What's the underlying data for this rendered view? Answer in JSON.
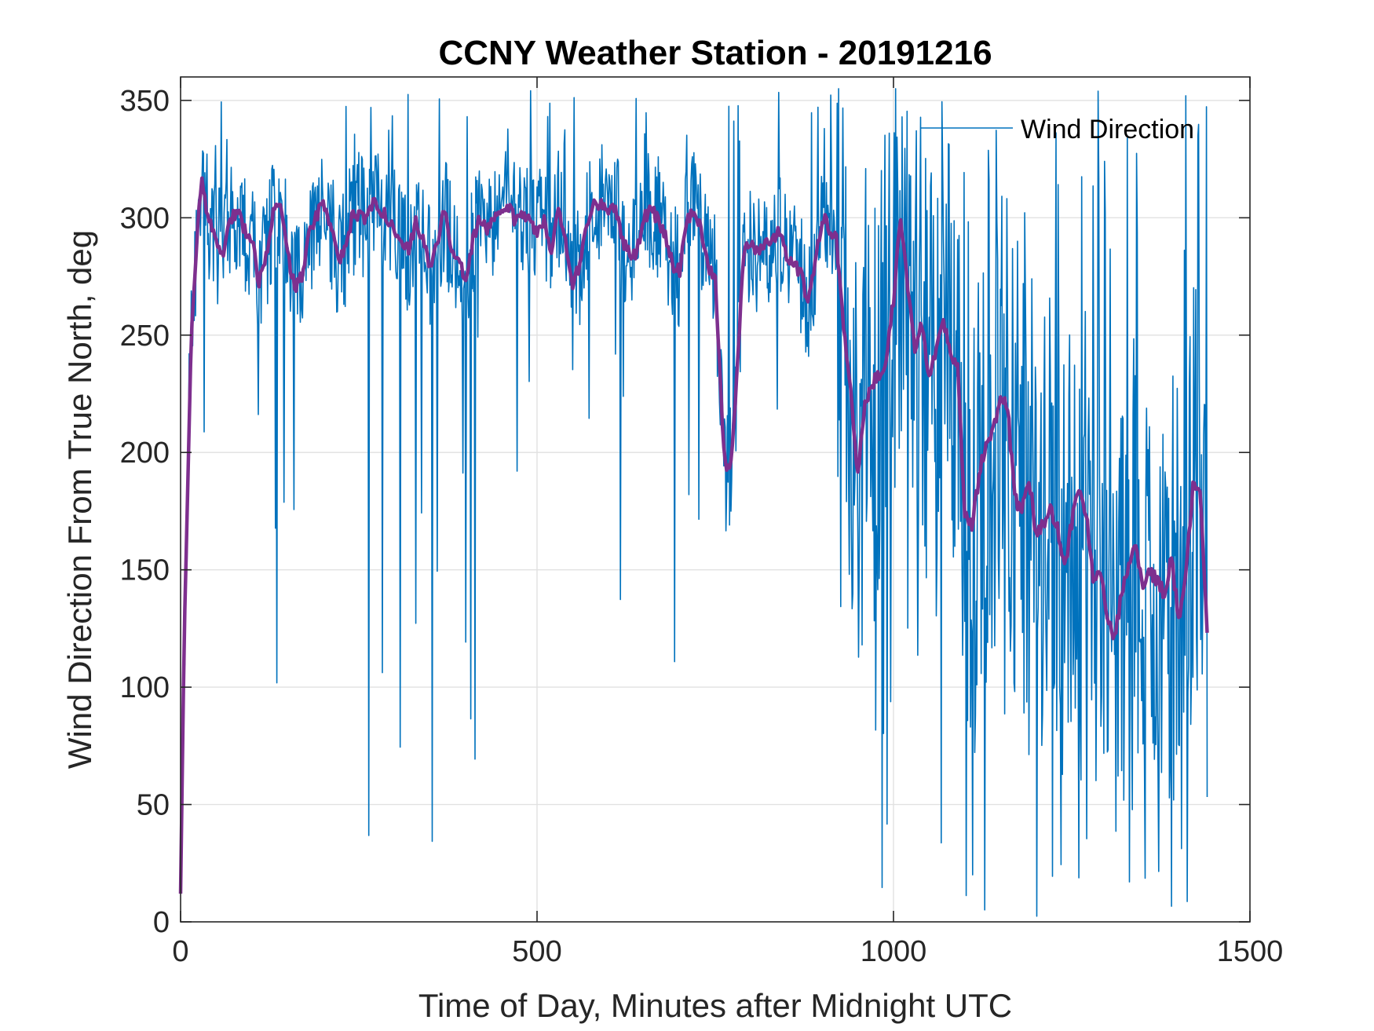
{
  "chart_data": {
    "type": "line",
    "title": "CCNY Weather Station - 20191216",
    "xlabel": "Time of Day, Minutes after Midnight UTC",
    "ylabel": "Wind Direction From True North, deg",
    "xlim": [
      0,
      1500
    ],
    "ylim": [
      0,
      360
    ],
    "xticks": [
      0,
      500,
      1000,
      1500
    ],
    "xtick_labels": [
      "0",
      "500",
      "1000",
      "1500"
    ],
    "yticks": [
      0,
      50,
      100,
      150,
      200,
      250,
      300,
      350
    ],
    "ytick_labels": [
      "0",
      "50",
      "100",
      "150",
      "200",
      "250",
      "300",
      "350"
    ],
    "grid": true,
    "legend": {
      "location": "top-right",
      "entries": [
        "Wind Direction"
      ]
    },
    "colors": {
      "raw": "#0072BD",
      "smoothed": "#7E2F8E"
    },
    "series": [
      {
        "name": "Wind Direction",
        "kind": "raw",
        "note": "1-minute samples, approx. minutes 0-1440; typically ~280-330 deg until ~900 min, highly variable (0-355 deg) afterwards",
        "x_start": 0,
        "x_end": 1440,
        "x_step": 1
      },
      {
        "name": "smoothed",
        "kind": "moving-average",
        "x": [
          0,
          5,
          15,
          25,
          30,
          40,
          50,
          60,
          70,
          80,
          90,
          100,
          110,
          120,
          130,
          140,
          150,
          160,
          170,
          180,
          190,
          200,
          210,
          220,
          230,
          240,
          250,
          260,
          270,
          280,
          290,
          300,
          310,
          320,
          330,
          340,
          350,
          360,
          370,
          380,
          390,
          400,
          410,
          420,
          430,
          440,
          450,
          460,
          470,
          480,
          490,
          500,
          510,
          520,
          530,
          540,
          550,
          560,
          570,
          580,
          590,
          600,
          610,
          620,
          630,
          640,
          650,
          660,
          670,
          680,
          690,
          700,
          710,
          720,
          730,
          740,
          750,
          760,
          765,
          770,
          775,
          780,
          790,
          800,
          810,
          820,
          830,
          840,
          850,
          860,
          870,
          880,
          890,
          900,
          910,
          920,
          930,
          940,
          950,
          960,
          970,
          980,
          990,
          1000,
          1010,
          1020,
          1030,
          1040,
          1050,
          1060,
          1070,
          1080,
          1090,
          1100,
          1110,
          1120,
          1130,
          1140,
          1150,
          1160,
          1170,
          1180,
          1190,
          1200,
          1210,
          1220,
          1230,
          1240,
          1250,
          1260,
          1270,
          1280,
          1290,
          1300,
          1310,
          1320,
          1330,
          1340,
          1350,
          1360,
          1370,
          1380,
          1390,
          1400,
          1410,
          1420,
          1430,
          1440
        ],
        "y": [
          12,
          120,
          250,
          300,
          315,
          298,
          290,
          285,
          300,
          303,
          295,
          292,
          272,
          285,
          302,
          305,
          285,
          270,
          275,
          292,
          300,
          308,
          298,
          282,
          285,
          300,
          302,
          298,
          308,
          303,
          300,
          295,
          292,
          285,
          300,
          290,
          278,
          290,
          302,
          288,
          282,
          275,
          290,
          300,
          295,
          298,
          303,
          305,
          298,
          303,
          298,
          294,
          300,
          285,
          303,
          290,
          272,
          280,
          298,
          306,
          306,
          303,
          305,
          290,
          285,
          285,
          300,
          303,
          300,
          292,
          280,
          278,
          300,
          302,
          296,
          280,
          275,
          210,
          192,
          195,
          205,
          232,
          285,
          290,
          284,
          289,
          290,
          295,
          283,
          282,
          276,
          265,
          280,
          300,
          296,
          290,
          255,
          225,
          190,
          220,
          230,
          232,
          240,
          265,
          300,
          270,
          245,
          255,
          230,
          245,
          255,
          245,
          235,
          175,
          168,
          190,
          205,
          210,
          225,
          220,
          180,
          175,
          190,
          165,
          170,
          175,
          168,
          150,
          170,
          185,
          175,
          145,
          150,
          130,
          120,
          140,
          152,
          160,
          140,
          150,
          145,
          140,
          155,
          128,
          150,
          185,
          182,
          126
        ]
      }
    ]
  }
}
